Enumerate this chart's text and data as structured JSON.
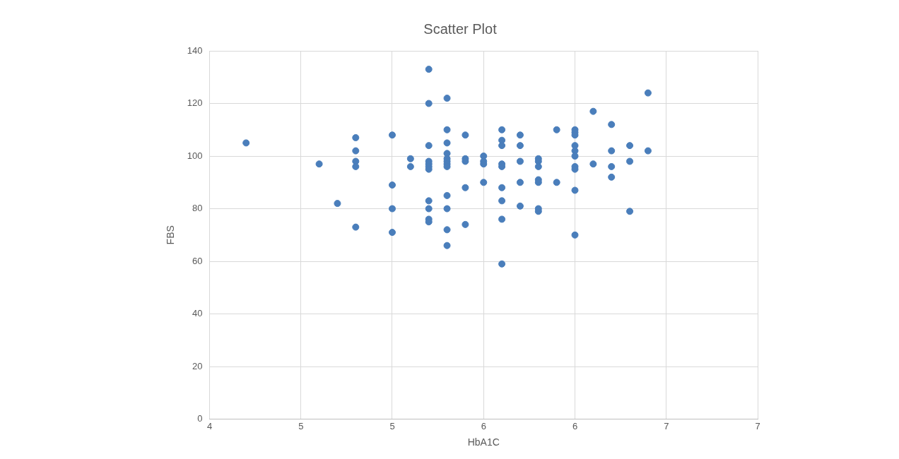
{
  "chart_data": {
    "type": "scatter",
    "title": "Scatter Plot",
    "xlabel": "HbA1C",
    "ylabel": "FBS",
    "x": [
      4.2,
      4.6,
      4.7,
      4.8,
      4.8,
      4.8,
      4.8,
      4.8,
      5.0,
      5.0,
      5.0,
      5.0,
      5.1,
      5.1,
      5.2,
      5.2,
      5.2,
      5.2,
      5.2,
      5.2,
      5.2,
      5.2,
      5.2,
      5.2,
      5.2,
      5.3,
      5.3,
      5.3,
      5.3,
      5.3,
      5.3,
      5.3,
      5.3,
      5.3,
      5.3,
      5.3,
      5.3,
      5.4,
      5.4,
      5.4,
      5.4,
      5.4,
      5.5,
      5.5,
      5.5,
      5.5,
      5.6,
      5.6,
      5.6,
      5.6,
      5.6,
      5.6,
      5.6,
      5.6,
      5.6,
      5.7,
      5.7,
      5.7,
      5.7,
      5.7,
      5.8,
      5.8,
      5.8,
      5.8,
      5.8,
      5.8,
      5.8,
      5.9,
      5.9,
      6.0,
      6.0,
      6.0,
      6.0,
      6.0,
      6.0,
      6.0,
      6.0,
      6.0,
      6.0,
      6.1,
      6.1,
      6.2,
      6.2,
      6.2,
      6.2,
      6.3,
      6.3,
      6.3,
      6.4,
      6.4
    ],
    "series": [
      {
        "color": "#4a7ebb",
        "values": [
          105,
          97,
          82,
          107,
          102,
          98,
          96,
          73,
          108,
          89,
          80,
          71,
          99,
          96,
          133,
          120,
          104,
          98,
          97,
          96,
          95,
          83,
          80,
          76,
          75,
          122,
          110,
          105,
          101,
          99,
          98,
          97,
          96,
          85,
          80,
          72,
          66,
          108,
          99,
          98,
          88,
          74,
          100,
          98,
          97,
          90,
          110,
          106,
          104,
          97,
          96,
          88,
          83,
          76,
          59,
          108,
          104,
          98,
          90,
          81,
          99,
          98,
          96,
          91,
          90,
          80,
          79,
          110,
          90,
          110,
          109,
          108,
          104,
          102,
          100,
          96,
          95,
          87,
          70,
          117,
          97,
          112,
          102,
          96,
          92,
          104,
          98,
          79,
          124,
          102
        ]
      }
    ],
    "xlim": [
      4,
      7
    ],
    "xticks": [
      4,
      {
        "value": 4.5,
        "label": "5"
      },
      5,
      {
        "value": 5.5,
        "label": "6"
      },
      6,
      {
        "value": 6.5,
        "label": "7"
      },
      7
    ],
    "ylim": [
      0,
      140
    ],
    "yticks": [
      0,
      20,
      40,
      60,
      80,
      100,
      120,
      140
    ],
    "grid": true,
    "legend": false,
    "marker": "circle"
  }
}
